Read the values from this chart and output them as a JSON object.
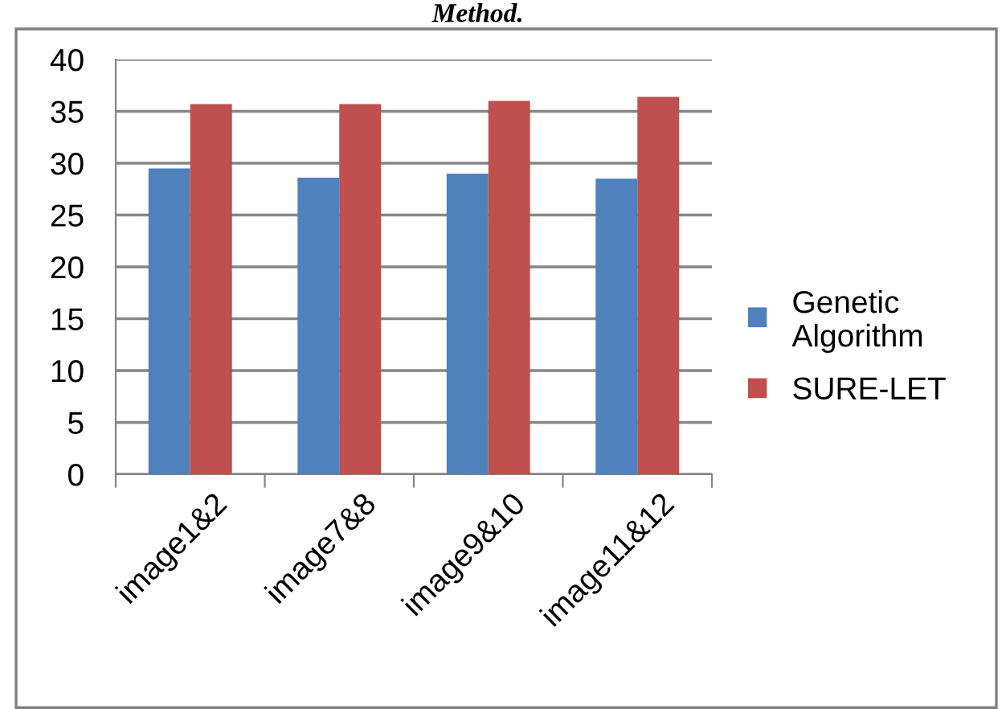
{
  "chart_data": {
    "type": "bar",
    "categories": [
      "image1&2",
      "image7&8",
      "image9&10",
      "image11&12"
    ],
    "series": [
      {
        "name": "Genetic Algorithm",
        "color": "#4f81bd",
        "values": [
          29.5,
          28.6,
          29.0,
          28.5
        ]
      },
      {
        "name": "SURE-LET",
        "color": "#c0504d",
        "values": [
          35.7,
          35.7,
          36.0,
          36.4
        ]
      }
    ],
    "ylim": [
      0,
      40
    ],
    "yticks": [
      0,
      5,
      10,
      15,
      20,
      25,
      30,
      35,
      40
    ],
    "grid": "y",
    "legend": "right",
    "annotations": [
      "Method."
    ]
  }
}
